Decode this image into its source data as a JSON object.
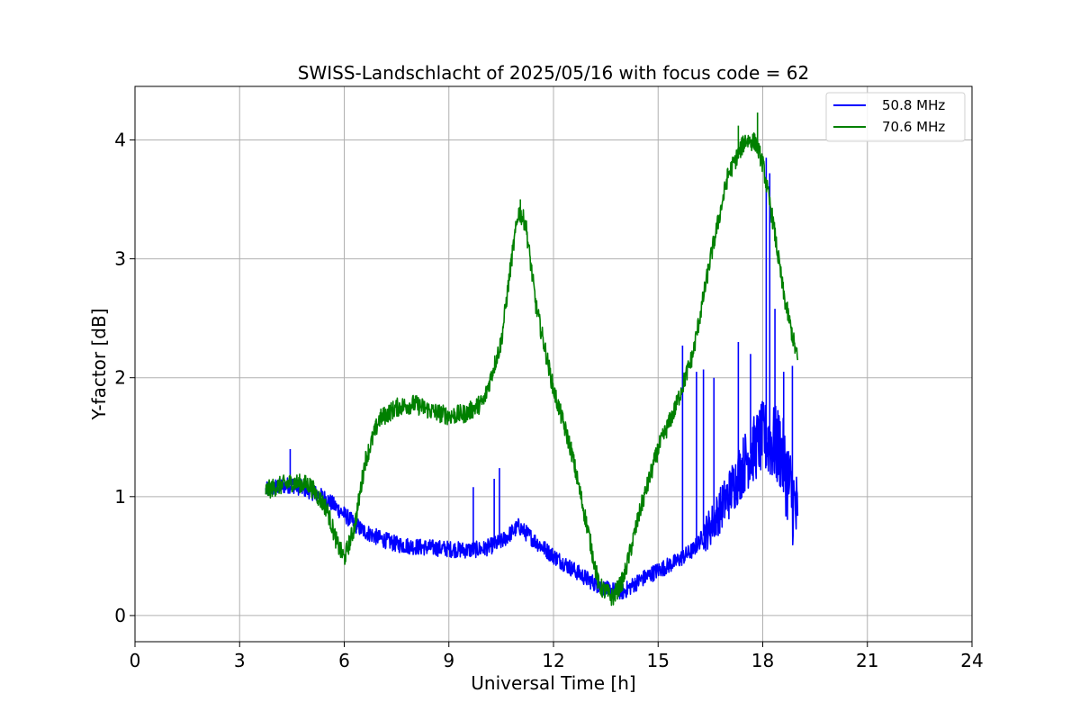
{
  "chart_data": {
    "type": "line",
    "title": "SWISS-Landschlacht of 2025/05/16 with focus code = 62",
    "xlabel": "Universal Time [h]",
    "ylabel": "Y-factor [dB]",
    "xlim": [
      0,
      24
    ],
    "ylim": [
      -0.22,
      4.45
    ],
    "xticks": [
      0,
      3,
      6,
      9,
      12,
      15,
      18,
      21,
      24
    ],
    "yticks": [
      0,
      1,
      2,
      3,
      4
    ],
    "xtick_labels": [
      "0",
      "3",
      "6",
      "9",
      "12",
      "15",
      "18",
      "21",
      "24"
    ],
    "ytick_labels": [
      "0",
      "1",
      "2",
      "3",
      "4"
    ],
    "grid": true,
    "legend_position": "upper-right",
    "series": [
      {
        "name": "50.8 MHz",
        "color": "#0000ff",
        "noise": 0.07,
        "x": [
          3.75,
          4.0,
          4.5,
          5.0,
          5.5,
          6.0,
          6.5,
          7.0,
          7.5,
          8.0,
          8.5,
          9.0,
          9.5,
          10.0,
          10.5,
          11.0,
          11.5,
          12.0,
          12.5,
          13.0,
          13.5,
          14.0,
          14.5,
          15.0,
          15.5,
          16.0,
          16.5,
          17.0,
          17.5,
          18.0,
          18.5,
          19.0
        ],
        "values": [
          1.05,
          1.08,
          1.1,
          1.05,
          0.98,
          0.85,
          0.72,
          0.65,
          0.6,
          0.58,
          0.57,
          0.56,
          0.55,
          0.56,
          0.62,
          0.75,
          0.62,
          0.5,
          0.4,
          0.3,
          0.22,
          0.2,
          0.3,
          0.38,
          0.45,
          0.55,
          0.75,
          1.0,
          1.3,
          1.5,
          1.4,
          0.8
        ],
        "spikes": [
          {
            "x": 4.45,
            "y": 1.4
          },
          {
            "x": 9.7,
            "y": 1.08
          },
          {
            "x": 10.3,
            "y": 1.15
          },
          {
            "x": 10.45,
            "y": 1.24
          },
          {
            "x": 15.7,
            "y": 2.27
          },
          {
            "x": 16.1,
            "y": 2.05
          },
          {
            "x": 16.3,
            "y": 2.07
          },
          {
            "x": 16.6,
            "y": 2.0
          },
          {
            "x": 17.3,
            "y": 2.3
          },
          {
            "x": 17.65,
            "y": 2.2
          },
          {
            "x": 18.1,
            "y": 3.85
          },
          {
            "x": 18.2,
            "y": 3.72
          },
          {
            "x": 18.35,
            "y": 2.58
          },
          {
            "x": 18.6,
            "y": 2.05
          },
          {
            "x": 18.85,
            "y": 2.1
          }
        ]
      },
      {
        "name": "70.6 MHz",
        "color": "#008000",
        "noise": 0.08,
        "x": [
          3.75,
          4.0,
          4.5,
          5.0,
          5.5,
          5.8,
          6.0,
          6.3,
          6.6,
          7.0,
          7.5,
          8.0,
          8.5,
          9.0,
          9.5,
          10.0,
          10.5,
          10.8,
          11.0,
          11.2,
          11.5,
          12.0,
          12.5,
          13.0,
          13.3,
          13.7,
          14.0,
          14.5,
          15.0,
          15.5,
          16.0,
          16.5,
          17.0,
          17.5,
          17.8,
          18.0,
          18.3,
          18.6,
          19.0
        ],
        "values": [
          1.05,
          1.08,
          1.12,
          1.1,
          0.9,
          0.6,
          0.48,
          0.75,
          1.3,
          1.65,
          1.75,
          1.78,
          1.72,
          1.68,
          1.7,
          1.8,
          2.3,
          3.0,
          3.4,
          3.3,
          2.6,
          1.9,
          1.4,
          0.7,
          0.25,
          0.15,
          0.3,
          0.9,
          1.4,
          1.75,
          2.2,
          3.0,
          3.7,
          4.0,
          3.98,
          3.8,
          3.3,
          2.7,
          2.15
        ],
        "spikes": [
          {
            "x": 17.85,
            "y": 4.23
          },
          {
            "x": 17.3,
            "y": 4.12
          },
          {
            "x": 11.05,
            "y": 3.5
          }
        ]
      }
    ]
  }
}
